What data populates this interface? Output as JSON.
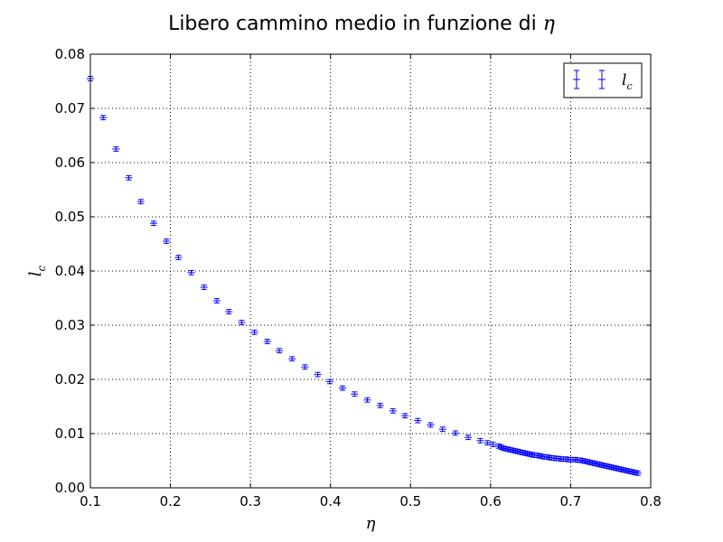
{
  "chart_data": {
    "type": "scatter",
    "title_text": "Libero cammino medio in funzione di ",
    "title_symbol": "η",
    "xlabel": "η",
    "ylabel_main": "l",
    "ylabel_sub": "c",
    "xlim": [
      0.1,
      0.8
    ],
    "ylim": [
      0.0,
      0.08
    ],
    "xticks": [
      "0.1",
      "0.2",
      "0.3",
      "0.4",
      "0.5",
      "0.6",
      "0.7",
      "0.8"
    ],
    "yticks": [
      "0.00",
      "0.01",
      "0.02",
      "0.03",
      "0.04",
      "0.05",
      "0.06",
      "0.07",
      "0.08"
    ],
    "grid": true,
    "legend_position": "top-right",
    "series": [
      {
        "name_main": "l",
        "name_sub": "c",
        "color": "#0000ff",
        "marker": "errorbar",
        "x": [
          0.1,
          0.116,
          0.132,
          0.148,
          0.163,
          0.179,
          0.195,
          0.21,
          0.226,
          0.242,
          0.258,
          0.273,
          0.289,
          0.305,
          0.321,
          0.336,
          0.352,
          0.368,
          0.384,
          0.399,
          0.415,
          0.43,
          0.446,
          0.462,
          0.478,
          0.493,
          0.509,
          0.525,
          0.54,
          0.556,
          0.572,
          0.587,
          0.596,
          0.603,
          0.61,
          0.613,
          0.616,
          0.619,
          0.622,
          0.625,
          0.628,
          0.631,
          0.634,
          0.637,
          0.64,
          0.643,
          0.646,
          0.649,
          0.652,
          0.655,
          0.658,
          0.661,
          0.664,
          0.667,
          0.67,
          0.673,
          0.676,
          0.679,
          0.682,
          0.685,
          0.688,
          0.691,
          0.694,
          0.697,
          0.7,
          0.703,
          0.706,
          0.709,
          0.712,
          0.715,
          0.718,
          0.721,
          0.724,
          0.727,
          0.73,
          0.733,
          0.736,
          0.739,
          0.742,
          0.745,
          0.748,
          0.751,
          0.754,
          0.757,
          0.76,
          0.763,
          0.766,
          0.769,
          0.772,
          0.775,
          0.778,
          0.781,
          0.784
        ],
        "y": [
          0.0755,
          0.0683,
          0.0625,
          0.0572,
          0.0528,
          0.0488,
          0.0455,
          0.0425,
          0.0397,
          0.037,
          0.0345,
          0.0325,
          0.0305,
          0.0287,
          0.027,
          0.0253,
          0.0238,
          0.0223,
          0.0209,
          0.0196,
          0.0184,
          0.0173,
          0.0162,
          0.0152,
          0.0142,
          0.0133,
          0.0124,
          0.0116,
          0.0108,
          0.0101,
          0.0093,
          0.0087,
          0.0083,
          0.008,
          0.0077,
          0.0075,
          0.0073,
          0.0072,
          0.0071,
          0.007,
          0.0069,
          0.0068,
          0.0067,
          0.0066,
          0.0065,
          0.0064,
          0.0063,
          0.0062,
          0.0061,
          0.006,
          0.006,
          0.0059,
          0.0058,
          0.0057,
          0.0057,
          0.0056,
          0.0055,
          0.0055,
          0.0054,
          0.0054,
          0.0053,
          0.0053,
          0.0053,
          0.0052,
          0.0052,
          0.0052,
          0.0052,
          0.0051,
          0.0051,
          0.005,
          0.0049,
          0.0048,
          0.0047,
          0.0046,
          0.0045,
          0.0044,
          0.0043,
          0.0042,
          0.0041,
          0.004,
          0.0039,
          0.0038,
          0.0037,
          0.0036,
          0.0035,
          0.0034,
          0.0033,
          0.0032,
          0.0031,
          0.003,
          0.0029,
          0.0028,
          0.0027
        ],
        "yerr": 0.0004
      }
    ]
  }
}
